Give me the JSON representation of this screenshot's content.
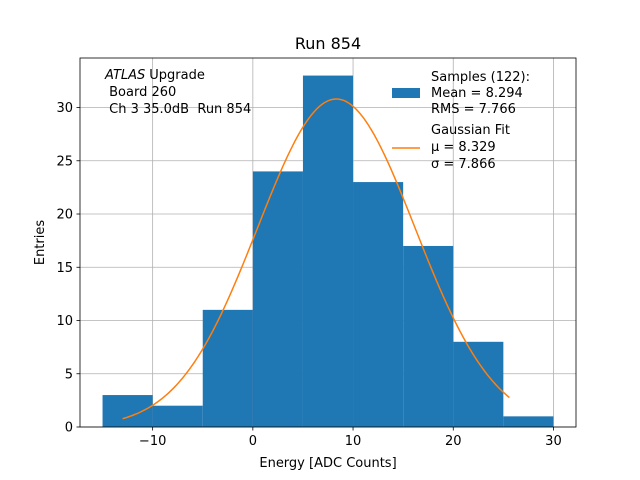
{
  "chart_data": {
    "type": "bar",
    "title": "Run 854",
    "xlabel": "Energy [ADC Counts]",
    "ylabel": "Entries",
    "xlim": [
      -17.25,
      32.25
    ],
    "ylim": [
      0,
      34.65
    ],
    "xticks": [
      -10,
      0,
      10,
      20,
      30
    ],
    "xtick_labels": [
      "−10",
      "0",
      "10",
      "20",
      "30"
    ],
    "yticks": [
      0,
      5,
      10,
      15,
      20,
      25,
      30
    ],
    "ytick_labels": [
      "0",
      "5",
      "10",
      "15",
      "20",
      "25",
      "30"
    ],
    "grid": true,
    "bin_edges": [
      -15,
      -10,
      -5,
      0,
      5,
      10,
      15,
      20,
      25,
      30
    ],
    "counts": [
      3,
      2,
      11,
      24,
      33,
      23,
      17,
      8,
      1
    ],
    "bar_color": "#1f77b4",
    "fit": {
      "name": "Gaussian Fit",
      "mu": 8.329,
      "sigma": 7.866,
      "peak": 30.8,
      "x_range": [
        -13,
        25.6
      ],
      "color": "#ff7f0e"
    },
    "legend": {
      "placement": "top-right",
      "samples_title": "Samples (122):",
      "samples_mean": "Mean = 8.294",
      "samples_rms": "RMS = 7.766",
      "fit_title": "Gaussian Fit",
      "fit_mu": "μ = 8.329",
      "fit_sigma": "σ = 7.866"
    },
    "annotation": {
      "placement": "top-left",
      "atlas": "ATLAS",
      "upgrade": "Upgrade",
      "line2": " Board 260",
      "line3": " Ch 3 35.0dB  Run 854"
    }
  }
}
